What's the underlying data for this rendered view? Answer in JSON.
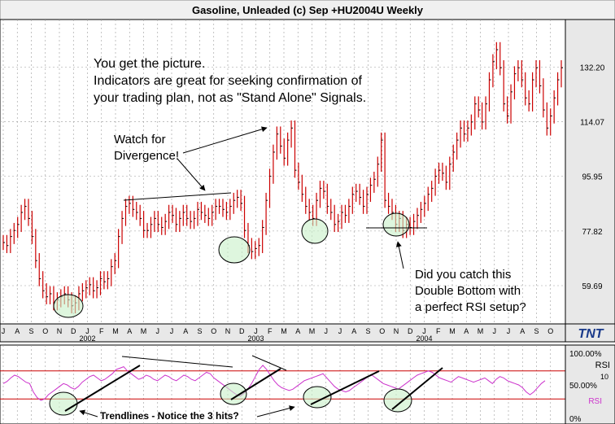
{
  "chart_data": {
    "type": "bar",
    "title": "Gasoline, Unleaded (c) Sep +HU2004U Weekly",
    "price_axis": {
      "ticks": [
        59.69,
        77.82,
        95.95,
        114.07,
        132.2
      ],
      "ylim": [
        47,
        148
      ]
    },
    "month_labels": [
      "J",
      "A",
      "S",
      "O",
      "N",
      "D",
      "J",
      "F",
      "M",
      "A",
      "M",
      "J",
      "J",
      "A",
      "S",
      "O",
      "N",
      "D",
      "J",
      "F",
      "M",
      "A",
      "M",
      "J",
      "J",
      "A",
      "S",
      "O",
      "N",
      "D",
      "J",
      "F",
      "M",
      "A",
      "M",
      "J",
      "J",
      "A",
      "S",
      "O"
    ],
    "year_labels": [
      {
        "label": "2002",
        "month_index": 6
      },
      {
        "label": "2003",
        "month_index": 18
      },
      {
        "label": "2004",
        "month_index": 30
      }
    ],
    "weekly_close": [
      74,
      73,
      76,
      78,
      80,
      84,
      86,
      82,
      76,
      68,
      62,
      58,
      56,
      57,
      54,
      55,
      56,
      57,
      55,
      53,
      54,
      57,
      58,
      59,
      60,
      58,
      59,
      62,
      61,
      62,
      66,
      68,
      76,
      82,
      86,
      87,
      85,
      84,
      82,
      78,
      78,
      80,
      82,
      80,
      79,
      81,
      84,
      83,
      80,
      82,
      84,
      82,
      81,
      82,
      85,
      84,
      83,
      82,
      84,
      86,
      86,
      85,
      84,
      86,
      88,
      89,
      87,
      78,
      73,
      71,
      72,
      73,
      79,
      88,
      96,
      104,
      110,
      106,
      102,
      108,
      112,
      98,
      94,
      90,
      86,
      84,
      82,
      88,
      92,
      91,
      86,
      84,
      80,
      81,
      84,
      83,
      86,
      90,
      91,
      89,
      86,
      90,
      93,
      95,
      100,
      108,
      88,
      86,
      84,
      80,
      82,
      78,
      80,
      79,
      81,
      83,
      85,
      87,
      90,
      92,
      96,
      98,
      97,
      94,
      100,
      104,
      108,
      112,
      110,
      112,
      114,
      120,
      118,
      114,
      120,
      128,
      134,
      138,
      132,
      120,
      116,
      124,
      130,
      132,
      128,
      122,
      120,
      128,
      132,
      126,
      118,
      112,
      116,
      122,
      128,
      132
    ],
    "rsi_axis": {
      "ticks_label": [
        "100.00%",
        "50.00%",
        "0%"
      ],
      "upper_line": 70,
      "lower_line": 30,
      "label": "RSI",
      "value_label": "10"
    },
    "rsi_values": [
      52,
      55,
      60,
      64,
      62,
      58,
      54,
      52,
      40,
      32,
      28,
      30,
      36,
      40,
      44,
      48,
      52,
      50,
      46,
      44,
      48,
      54,
      58,
      62,
      64,
      60,
      56,
      58,
      62,
      66,
      72,
      74,
      76,
      70,
      66,
      62,
      58,
      60,
      64,
      62,
      58,
      56,
      60,
      64,
      62,
      58,
      56,
      60,
      64,
      62,
      58,
      56,
      60,
      64,
      68,
      66,
      60,
      56,
      52,
      48,
      44,
      40,
      36,
      34,
      38,
      44,
      52,
      62,
      72,
      78,
      72,
      64,
      56,
      50,
      46,
      44,
      42,
      44,
      48,
      52,
      56,
      58,
      60,
      62,
      64,
      66,
      60,
      54,
      48,
      44,
      42,
      40,
      42,
      46,
      50,
      54,
      58,
      62,
      64,
      60,
      56,
      52,
      50,
      48,
      46,
      44,
      48,
      52,
      56,
      60,
      64,
      66,
      68,
      70,
      68,
      64,
      60,
      58,
      56,
      54,
      58,
      62,
      60,
      58,
      56,
      54,
      56,
      58,
      60,
      56,
      52,
      58,
      62,
      60,
      56,
      54,
      52,
      50,
      46,
      40,
      36,
      40,
      46,
      52,
      56
    ],
    "annotations": {
      "main_text_1": "You get the picture.",
      "main_text_2": "Indicators are great for seeking confirmation of",
      "main_text_3": "your trading plan, not as \"Stand Alone\" Signals.",
      "watch_1": "Watch for",
      "watch_2": "Divergence!",
      "double_1": "Did you catch this",
      "double_2": "Double Bottom with",
      "double_3": "a perfect RSI setup?",
      "trendlines": "Trendlines - Notice the 3 hits?"
    },
    "logo": "TNT",
    "colors": {
      "bar": "#cc0000",
      "rsi": "#cc33cc",
      "highlight": "#c8f0c8",
      "grid": "#888888"
    }
  }
}
